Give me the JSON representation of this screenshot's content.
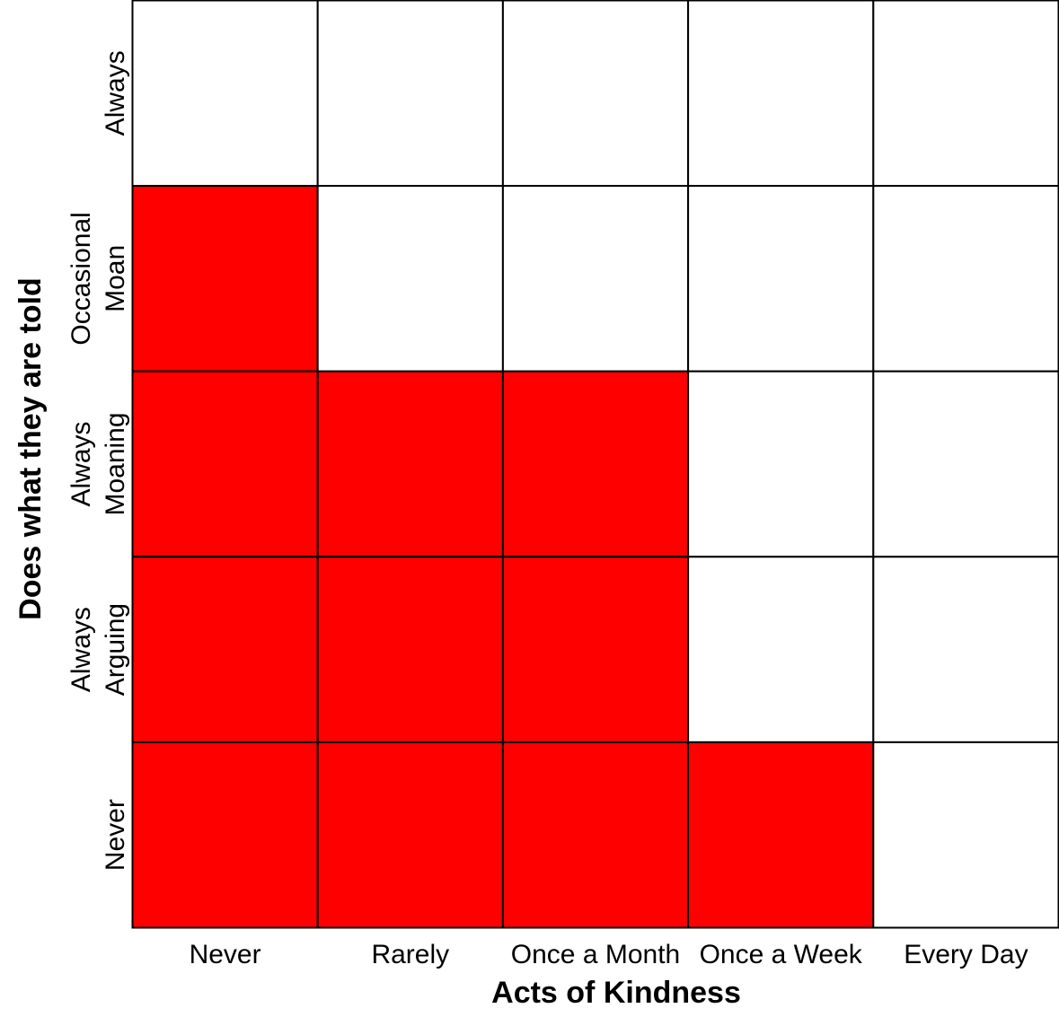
{
  "chart_data": {
    "type": "heatmap",
    "xlabel": "Acts of Kindness",
    "ylabel": "Does what they are told",
    "x_categories": [
      "Never",
      "Rarely",
      "Once a Month",
      "Once a Week",
      "Every Day"
    ],
    "y_categories_top_to_bottom": [
      "Always",
      "Occasional\nMoan",
      "Always\nMoaning",
      "Always\nArguing",
      "Never"
    ],
    "values_top_to_bottom": [
      [
        0,
        0,
        0,
        0,
        0
      ],
      [
        1,
        0,
        0,
        0,
        0
      ],
      [
        1,
        1,
        1,
        0,
        0
      ],
      [
        1,
        1,
        1,
        0,
        0
      ],
      [
        1,
        1,
        1,
        1,
        0
      ]
    ],
    "colors": {
      "1": "#FF0000",
      "0": "#FFFFFF"
    },
    "grid": true,
    "legend": "none"
  }
}
